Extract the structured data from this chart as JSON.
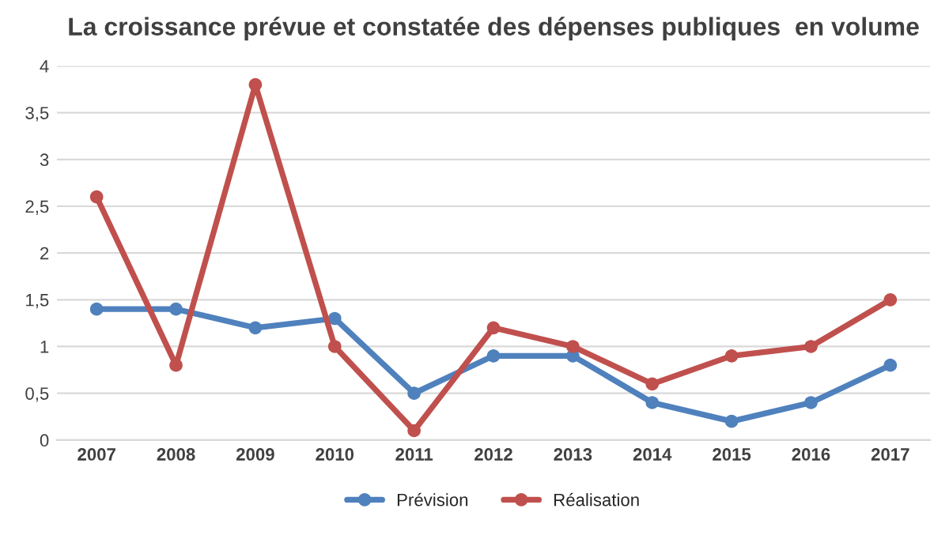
{
  "chart_data": {
    "type": "line",
    "title": "La croissance prévue et constatée des dépenses publiques  en volume",
    "categories": [
      "2007",
      "2008",
      "2009",
      "2010",
      "2011",
      "2012",
      "2013",
      "2014",
      "2015",
      "2016",
      "2017"
    ],
    "series": [
      {
        "name": "Prévision",
        "color": "#4f81bd",
        "values": [
          1.4,
          1.4,
          1.2,
          1.3,
          0.5,
          0.9,
          0.9,
          0.4,
          0.2,
          0.4,
          0.8
        ]
      },
      {
        "name": "Réalisation",
        "color": "#c0504d",
        "values": [
          2.6,
          0.8,
          3.8,
          1.0,
          0.1,
          1.2,
          1.0,
          0.6,
          0.9,
          1.0,
          1.5
        ]
      }
    ],
    "ylim": [
      0,
      4
    ],
    "yticks": [
      0,
      {
        "value": 0.5,
        "label": "0,5"
      },
      1,
      {
        "value": 1.5,
        "label": "1,5"
      },
      2,
      {
        "value": 2.5,
        "label": "2,5"
      },
      3,
      {
        "value": 3.5,
        "label": "3,5"
      },
      4
    ],
    "grid": "y",
    "legend": "bottom",
    "marker": "circle",
    "line_style": "solid"
  }
}
